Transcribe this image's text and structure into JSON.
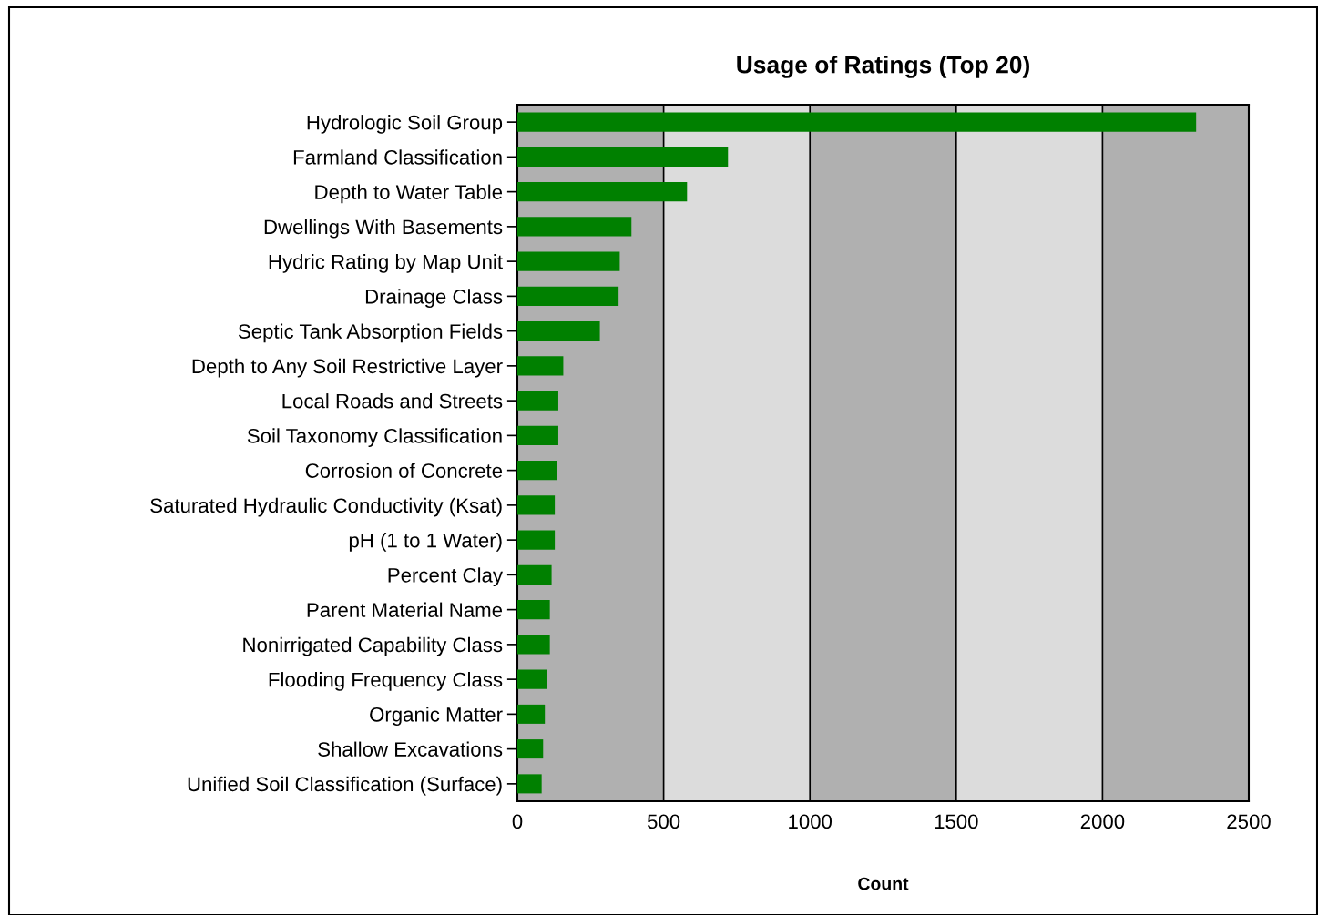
{
  "chart_data": {
    "type": "bar",
    "orientation": "horizontal",
    "title": "Usage of Ratings (Top 20)",
    "xlabel": "Count",
    "categories": [
      "Hydrologic Soil Group",
      "Farmland Classification",
      "Depth to Water Table",
      "Dwellings With Basements",
      "Hydric Rating by Map Unit",
      "Drainage Class",
      "Septic Tank Absorption Fields",
      "Depth to Any Soil Restrictive Layer",
      "Local Roads and Streets",
      "Soil Taxonomy Classification",
      "Corrosion of Concrete",
      "Saturated Hydraulic Conductivity (Ksat)",
      "pH (1 to 1 Water)",
      "Percent Clay",
      "Parent Material Name",
      "Nonirrigated Capability Class",
      "Flooding Frequency Class",
      "Organic Matter",
      "Shallow Excavations",
      "Unified Soil Classification (Surface)"
    ],
    "values": [
      2320,
      720,
      580,
      390,
      350,
      346,
      282,
      157,
      140,
      140,
      134,
      128,
      128,
      117,
      111,
      111,
      100,
      94,
      88,
      83
    ],
    "color": "#008000",
    "xlim": [
      0,
      2500
    ],
    "xticks": [
      0,
      500,
      1000,
      1500,
      2000,
      2500
    ],
    "grid": "x",
    "bands": [
      {
        "axis": "x",
        "from": 0,
        "to": 500,
        "color": "#b0b0b0"
      },
      {
        "axis": "x",
        "from": 500,
        "to": 1000,
        "color": "#dcdcdc"
      },
      {
        "axis": "x",
        "from": 1000,
        "to": 1500,
        "color": "#b0b0b0"
      },
      {
        "axis": "x",
        "from": 1500,
        "to": 2000,
        "color": "#dcdcdc"
      },
      {
        "axis": "x",
        "from": 2000,
        "to": 2500,
        "color": "#b0b0b0"
      }
    ]
  }
}
